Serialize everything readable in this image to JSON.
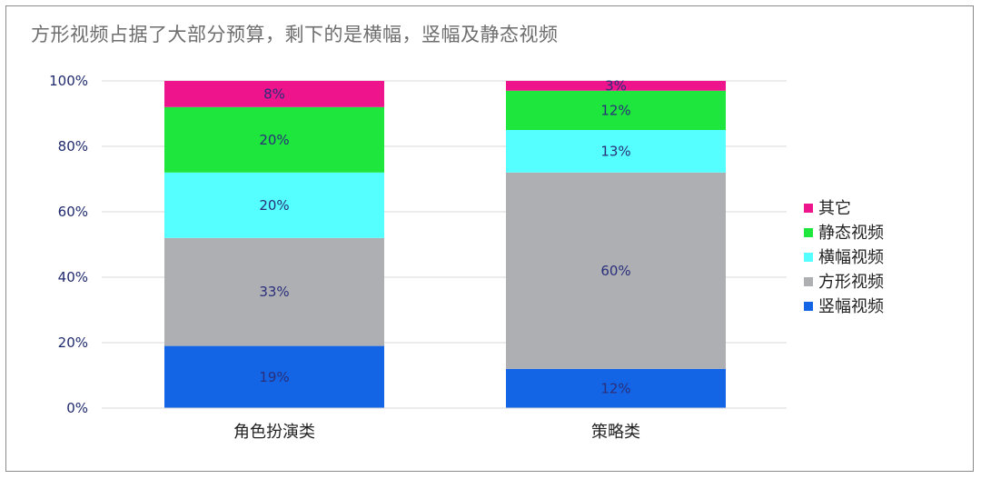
{
  "chart_data": {
    "type": "bar",
    "stacked": true,
    "title": "方形视频占据了大部分预算，剩下的是横幅，竖幅及静态视频",
    "categories": [
      "角色扮演类",
      "策略类"
    ],
    "series": [
      {
        "name": "竖幅视频",
        "values": [
          19,
          12
        ],
        "labels": [
          "19%",
          "12%"
        ],
        "color": "#1464e6"
      },
      {
        "name": "方形视频",
        "values": [
          33,
          60
        ],
        "labels": [
          "33%",
          "60%"
        ],
        "color": "#aeafb3"
      },
      {
        "name": "横幅视频",
        "values": [
          20,
          13
        ],
        "labels": [
          "20%",
          "13%"
        ],
        "color": "#55ffff"
      },
      {
        "name": "静态视频",
        "values": [
          20,
          12
        ],
        "labels": [
          "20%",
          "12%"
        ],
        "color": "#1ee63c"
      },
      {
        "name": "其它",
        "values": [
          8,
          3
        ],
        "labels": [
          "8%",
          "3%"
        ],
        "color": "#ee148c"
      }
    ],
    "yticks": [
      "0%",
      "20%",
      "40%",
      "60%",
      "80%",
      "100%"
    ],
    "ylim": [
      0,
      100
    ],
    "grid": true,
    "legend_position": "right"
  }
}
